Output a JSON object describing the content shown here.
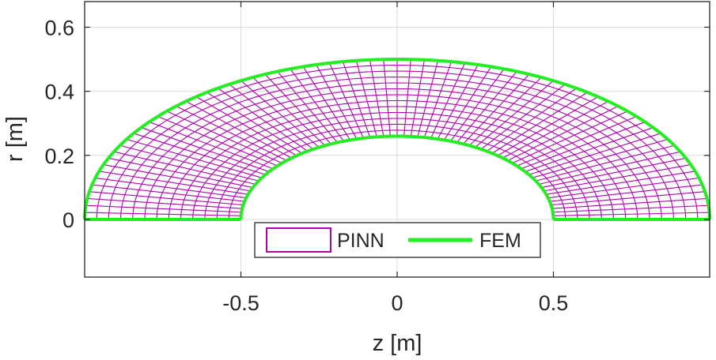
{
  "chart_data": {
    "type": "line",
    "xlabel": "z [m]",
    "ylabel": "r [m]",
    "xlim": [
      -1,
      1
    ],
    "ylim": [
      -0.18,
      0.68
    ],
    "x_ticks": [
      {
        "value": -0.5,
        "label": "-0.5"
      },
      {
        "value": 0,
        "label": "0"
      },
      {
        "value": 0.5,
        "label": "0.5"
      }
    ],
    "y_ticks": [
      {
        "value": 0,
        "label": "0"
      },
      {
        "value": 0.2,
        "label": "0.2"
      },
      {
        "value": 0.4,
        "label": "0.4"
      },
      {
        "value": 0.6,
        "label": "0.6"
      }
    ],
    "grid": true,
    "legend_position": "bottom-center",
    "series": [
      {
        "name": "PINN",
        "style": "mesh",
        "color": "#b000b0",
        "domain": "half-annulus",
        "inner_radius_z": 0.5,
        "inner_radius_r": 0.26,
        "outer_radius_z": 1.0,
        "outer_radius_r": 0.5,
        "angular_divisions": 72,
        "radial_divisions": 13
      },
      {
        "name": "FEM",
        "style": "boundary-line",
        "color": "#22ee22",
        "boundary": {
          "outer_arc": {
            "z_half_width": 1.0,
            "r_peak": 0.5
          },
          "inner_arc": {
            "z_half_width": 0.5,
            "r_peak": 0.26
          },
          "base_segments": [
            [
              -1.0,
              -0.5
            ],
            [
              0.5,
              1.0
            ]
          ]
        }
      }
    ],
    "legend": [
      {
        "label": "PINN",
        "color": "#b000b0",
        "kind": "box"
      },
      {
        "label": "FEM",
        "color": "#22ee22",
        "kind": "line"
      }
    ]
  }
}
